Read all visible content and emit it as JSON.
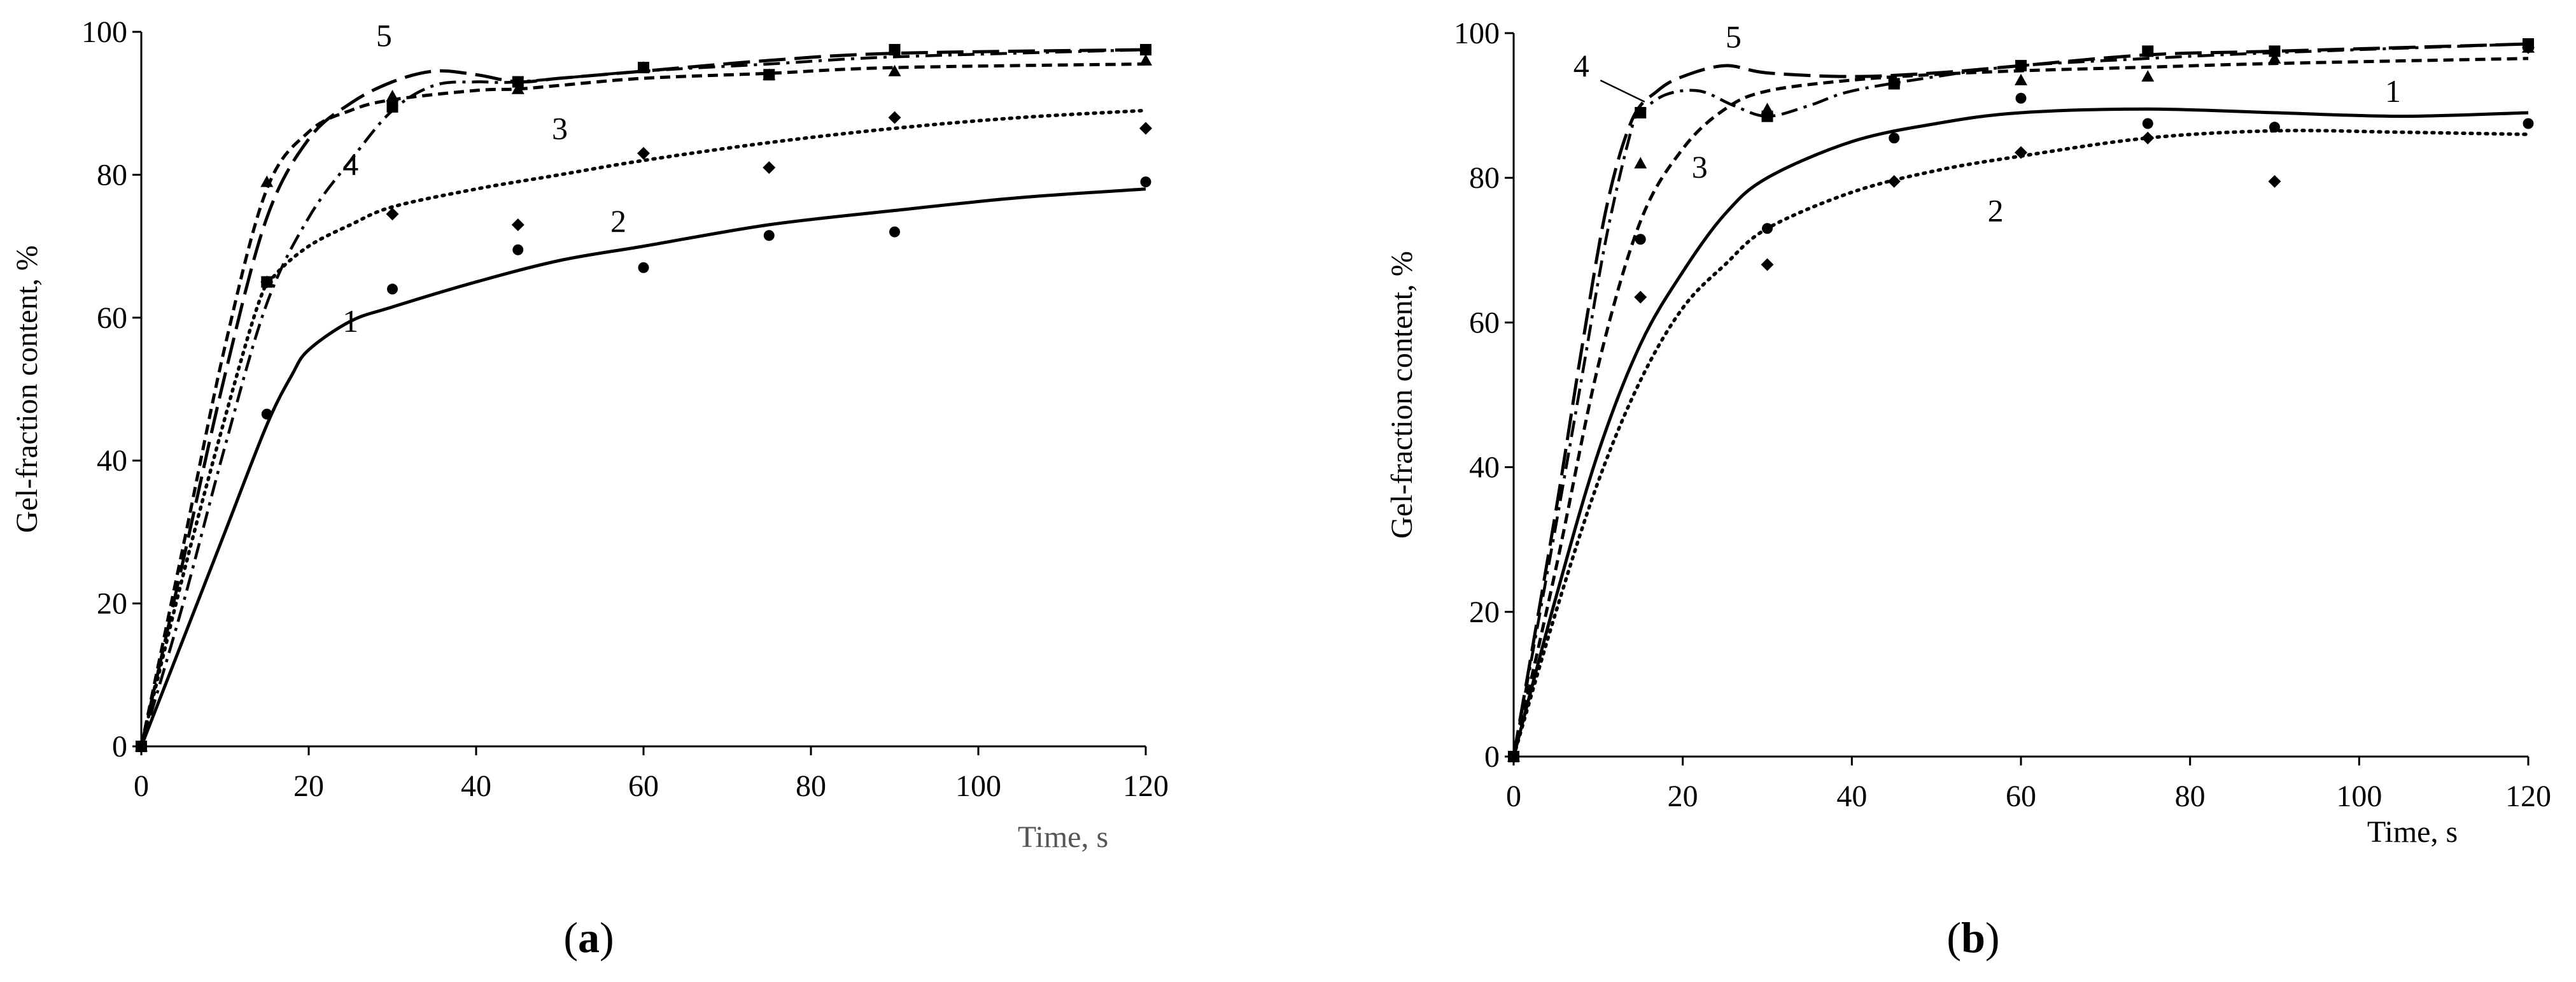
{
  "chart_data": [
    {
      "panel": "a",
      "type": "scatter",
      "caption": "(a)",
      "caption_letter": "a",
      "xlabel": "Time, s",
      "ylabel": "Gel-fraction content, %",
      "xlim": [
        0,
        120
      ],
      "ylim": [
        0,
        100
      ],
      "xticks": [
        0,
        20,
        40,
        60,
        80,
        100,
        120
      ],
      "yticks": [
        0,
        20,
        40,
        60,
        80,
        100
      ],
      "grid": false,
      "series": [
        {
          "name": "1",
          "marker": "circle",
          "line_style": "solid",
          "x": [
            0,
            15,
            30,
            45,
            60,
            75,
            90,
            120
          ],
          "y": [
            0,
            46.5,
            64,
            69.5,
            67,
            71.5,
            72,
            79
          ],
          "fit": [
            [
              0,
              0
            ],
            [
              5,
              15
            ],
            [
              10,
              30
            ],
            [
              15,
              45
            ],
            [
              18,
              52
            ],
            [
              20,
              55.5
            ],
            [
              25,
              59.5
            ],
            [
              30,
              61.5
            ],
            [
              40,
              65
            ],
            [
              50,
              68
            ],
            [
              60,
              70
            ],
            [
              75,
              73
            ],
            [
              90,
              75
            ],
            [
              105,
              76.8
            ],
            [
              120,
              78
            ]
          ],
          "label_at": [
            25,
            58
          ]
        },
        {
          "name": "2",
          "marker": "diamond",
          "line_style": "dotted",
          "x": [
            0,
            15,
            30,
            45,
            60,
            75,
            90,
            120
          ],
          "y": [
            0,
            65,
            74.5,
            73,
            83,
            81,
            88,
            86.5
          ],
          "fit": [
            [
              0,
              0
            ],
            [
              5,
              24
            ],
            [
              10,
              46
            ],
            [
              14,
              62
            ],
            [
              16,
              66
            ],
            [
              20,
              70
            ],
            [
              25,
              73
            ],
            [
              30,
              75.5
            ],
            [
              40,
              78
            ],
            [
              50,
              80
            ],
            [
              60,
              82
            ],
            [
              75,
              84.5
            ],
            [
              90,
              86.5
            ],
            [
              105,
              88
            ],
            [
              120,
              89
            ]
          ],
          "label_at": [
            57,
            72
          ]
        },
        {
          "name": "3",
          "marker": "triangle",
          "line_style": "dashed",
          "x": [
            0,
            15,
            30,
            45,
            60,
            75,
            90,
            120
          ],
          "y": [
            0,
            79,
            91,
            92,
            95,
            94,
            94.5,
            96
          ],
          "fit": [
            [
              0,
              0
            ],
            [
              5,
              28
            ],
            [
              10,
              56
            ],
            [
              15,
              78
            ],
            [
              20,
              86
            ],
            [
              25,
              89
            ],
            [
              30,
              90.5
            ],
            [
              40,
              91.8
            ],
            [
              45,
              92
            ],
            [
              50,
              92.5
            ],
            [
              60,
              93.5
            ],
            [
              75,
              94.2
            ],
            [
              90,
              95
            ],
            [
              120,
              95.5
            ]
          ],
          "label_at": [
            50,
            85
          ]
        },
        {
          "name": "4",
          "marker": "square",
          "line_style": "dash-dot",
          "x": [
            0,
            15,
            30,
            45,
            60,
            75,
            90,
            120
          ],
          "y": [
            0,
            65,
            89.5,
            93,
            95,
            94,
            97.5,
            97.5
          ],
          "fit": [
            [
              0,
              0
            ],
            [
              5,
              20
            ],
            [
              10,
              42
            ],
            [
              15,
              62
            ],
            [
              20,
              74
            ],
            [
              25,
              82
            ],
            [
              30,
              89
            ],
            [
              35,
              92.5
            ],
            [
              40,
              93
            ],
            [
              45,
              93
            ],
            [
              60,
              94.5
            ],
            [
              75,
              95.5
            ],
            [
              90,
              96.5
            ],
            [
              120,
              97.5
            ]
          ],
          "label_at": [
            25,
            80
          ]
        },
        {
          "name": "5",
          "marker": "none",
          "line_style": "long-dash",
          "x": [],
          "y": [],
          "fit": [
            [
              0,
              0
            ],
            [
              5,
              26
            ],
            [
              10,
              52
            ],
            [
              15,
              74
            ],
            [
              20,
              85
            ],
            [
              25,
              90
            ],
            [
              30,
              93
            ],
            [
              35,
              94.5
            ],
            [
              40,
              94
            ],
            [
              45,
              93
            ],
            [
              50,
              93.5
            ],
            [
              60,
              94.5
            ],
            [
              75,
              96
            ],
            [
              90,
              97
            ],
            [
              120,
              97.5
            ]
          ],
          "label_at": [
            29,
            98
          ]
        }
      ]
    },
    {
      "panel": "b",
      "type": "scatter",
      "caption": "(b)",
      "caption_letter": "b",
      "xlabel": "Time, s",
      "ylabel": "Gel-fraction content, %",
      "xlim": [
        0,
        120
      ],
      "ylim": [
        0,
        100
      ],
      "xticks": [
        0,
        20,
        40,
        60,
        80,
        100,
        120
      ],
      "yticks": [
        0,
        20,
        40,
        60,
        80,
        100
      ],
      "grid": false,
      "series": [
        {
          "name": "1",
          "marker": "circle",
          "line_style": "solid",
          "x": [
            0,
            15,
            30,
            45,
            60,
            75,
            90,
            120
          ],
          "y": [
            0,
            71.5,
            73,
            85.5,
            91,
            87.5,
            87,
            87.5
          ],
          "fit": [
            [
              0,
              0
            ],
            [
              5,
              22
            ],
            [
              10,
              42
            ],
            [
              15,
              57
            ],
            [
              20,
              67
            ],
            [
              25,
              75
            ],
            [
              30,
              80
            ],
            [
              40,
              85
            ],
            [
              50,
              87.5
            ],
            [
              60,
              89
            ],
            [
              75,
              89.5
            ],
            [
              90,
              89
            ],
            [
              105,
              88.5
            ],
            [
              120,
              89
            ]
          ],
          "label_at": [
            104,
            90.5
          ]
        },
        {
          "name": "2",
          "marker": "diamond",
          "line_style": "dotted",
          "x": [
            0,
            15,
            30,
            45,
            60,
            75,
            90,
            120
          ],
          "y": [
            0,
            63.5,
            68,
            79.5,
            83.5,
            85.5,
            79.5,
            98
          ],
          "fit": [
            [
              0,
              0
            ],
            [
              5,
              20
            ],
            [
              10,
              38
            ],
            [
              15,
              52
            ],
            [
              20,
              62
            ],
            [
              25,
              68
            ],
            [
              30,
              73
            ],
            [
              40,
              78
            ],
            [
              50,
              81
            ],
            [
              60,
              83
            ],
            [
              75,
              85.5
            ],
            [
              90,
              86.5
            ],
            [
              105,
              86.3
            ],
            [
              120,
              86
            ]
          ],
          "label_at": [
            57,
            74
          ]
        },
        {
          "name": "3",
          "marker": "triangle",
          "line_style": "dashed",
          "x": [
            0,
            15,
            30,
            45,
            60,
            75,
            90,
            120
          ],
          "y": [
            0,
            82,
            89.5,
            93.5,
            93.5,
            94,
            96.5,
            98
          ],
          "fit": [
            [
              0,
              0
            ],
            [
              5,
              26
            ],
            [
              10,
              54
            ],
            [
              15,
              74
            ],
            [
              20,
              84
            ],
            [
              25,
              89.5
            ],
            [
              30,
              92
            ],
            [
              40,
              93.5
            ],
            [
              50,
              94.3
            ],
            [
              60,
              94.8
            ],
            [
              75,
              95.3
            ],
            [
              90,
              95.8
            ],
            [
              120,
              96.5
            ]
          ],
          "label_at": [
            22,
            80
          ]
        },
        {
          "name": "4",
          "marker": "square",
          "line_style": "dash-dot",
          "x": [
            0,
            15,
            30,
            45,
            60,
            75,
            90,
            120
          ],
          "y": [
            0,
            89,
            88.5,
            93,
            95.5,
            97.5,
            97.5,
            98.5
          ],
          "fit": [
            [
              0,
              0
            ],
            [
              5,
              32
            ],
            [
              8,
              52
            ],
            [
              11,
              72
            ],
            [
              14,
              87
            ],
            [
              15,
              89
            ],
            [
              18,
              91.5
            ],
            [
              22,
              92
            ],
            [
              26,
              90
            ],
            [
              30,
              88.5
            ],
            [
              35,
              90
            ],
            [
              40,
              92
            ],
            [
              50,
              94
            ],
            [
              60,
              95.5
            ],
            [
              75,
              96.5
            ],
            [
              90,
              97.3
            ],
            [
              120,
              98.5
            ]
          ],
          "label_at": [
            8,
            94
          ]
        },
        {
          "name": "5",
          "marker": "none",
          "line_style": "long-dash",
          "x": [],
          "y": [],
          "fit": [
            [
              0,
              0
            ],
            [
              5,
              34
            ],
            [
              8,
              56
            ],
            [
              11,
              76
            ],
            [
              14,
              88
            ],
            [
              17,
              92
            ],
            [
              20,
              94
            ],
            [
              25,
              95.5
            ],
            [
              30,
              94.5
            ],
            [
              40,
              94
            ],
            [
              50,
              94.5
            ],
            [
              60,
              95.5
            ],
            [
              75,
              97
            ],
            [
              90,
              97.5
            ],
            [
              120,
              98.5
            ]
          ],
          "label_at": [
            26,
            98
          ]
        }
      ]
    }
  ]
}
